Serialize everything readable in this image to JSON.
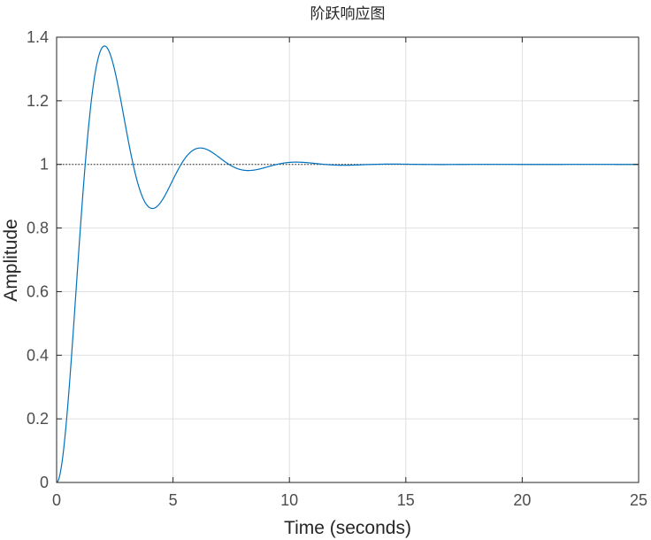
{
  "chart_data": {
    "type": "line",
    "title": "阶跃响应图",
    "xlabel": "Time (seconds)",
    "ylabel": "Amplitude",
    "xlim": [
      0,
      25
    ],
    "ylim": [
      0,
      1.4
    ],
    "xticks": [
      0,
      5,
      10,
      15,
      20,
      25
    ],
    "xtick_labels": [
      "0",
      "5",
      "10",
      "15",
      "20",
      "25"
    ],
    "yticks": [
      0,
      0.2,
      0.4,
      0.6,
      0.8,
      1,
      1.2,
      1.4
    ],
    "ytick_labels": [
      "0",
      "0.2",
      "0.4",
      "0.6",
      "0.8",
      "1",
      "1.2",
      "1.4"
    ],
    "grid": true,
    "reference_line": {
      "y": 1,
      "style": "dotted"
    },
    "series": [
      {
        "color": "#0072bd",
        "x": [
          0,
          0.5,
          1.0,
          1.5,
          2.0,
          2.45,
          3.0,
          3.5,
          4.0,
          4.4,
          5.0,
          5.5,
          6.0,
          6.35,
          7.0,
          7.5,
          8.0,
          8.25,
          9.0,
          9.5,
          10.0,
          10.25,
          11.0,
          11.5,
          12.0,
          12.2,
          13.0,
          13.5,
          14.0,
          14.15,
          15.0,
          16.1,
          18.0,
          20.0,
          22.0,
          25.0
        ],
        "y": [
          0,
          0.11,
          0.42,
          0.83,
          1.21,
          1.385,
          1.3,
          1.04,
          0.8,
          0.755,
          0.93,
          1.08,
          1.14,
          1.15,
          1.06,
          0.97,
          0.913,
          0.908,
          0.97,
          1.03,
          1.055,
          1.056,
          1.01,
          0.97,
          0.965,
          0.966,
          0.99,
          1.01,
          1.02,
          1.021,
          1.005,
          0.988,
          1.008,
          0.996,
          1.003,
          1.0
        ]
      }
    ],
    "model": {
      "type": "second-order-underdamped",
      "steady_state": 1,
      "wn": 1.6,
      "zeta": 0.3
    }
  }
}
